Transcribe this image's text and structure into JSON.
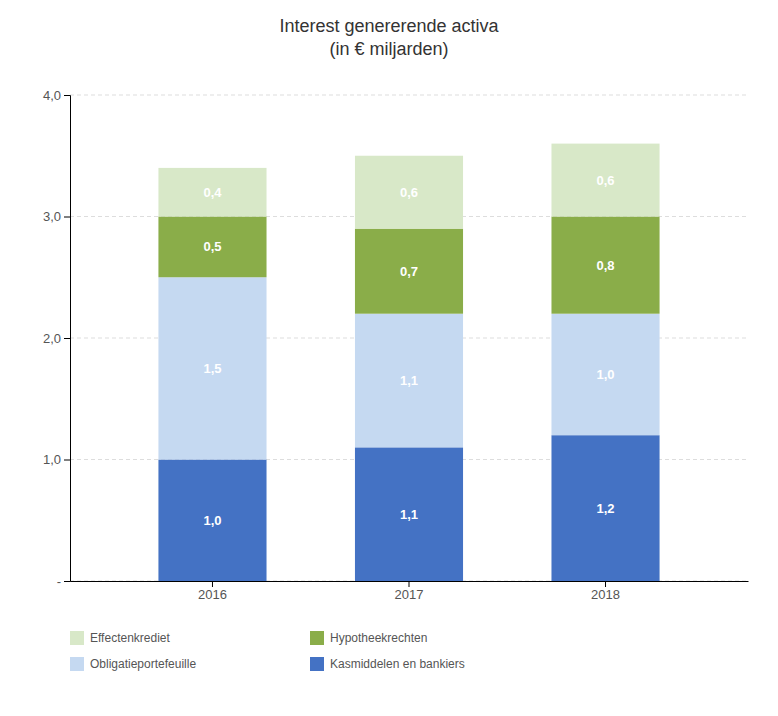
{
  "chart_data": {
    "type": "bar",
    "stacked": true,
    "title": "Interest genererende activa\n(in € miljarden)",
    "categories": [
      "2016",
      "2017",
      "2018"
    ],
    "series": [
      {
        "name": "Kasmiddelen en bankiers",
        "color": "#4472C4",
        "values": [
          1.0,
          1.1,
          1.2
        ],
        "value_labels": [
          "1,0",
          "1,1",
          "1,2"
        ]
      },
      {
        "name": "Obligatieportefeuille",
        "color": "#C5D9F1",
        "values": [
          1.5,
          1.1,
          1.0
        ],
        "value_labels": [
          "1,5",
          "1,1",
          "1,0"
        ]
      },
      {
        "name": "Hypotheekrechten",
        "color": "#8AAD49",
        "values": [
          0.5,
          0.7,
          0.8
        ],
        "value_labels": [
          "0,5",
          "0,7",
          "0,8"
        ]
      },
      {
        "name": "Effectenkrediet",
        "color": "#D8E8C8",
        "values": [
          0.4,
          0.6,
          0.6
        ],
        "value_labels": [
          "0,4",
          "0,6",
          "0,6"
        ]
      }
    ],
    "ylim": [
      0,
      4.0
    ],
    "yticks": [
      {
        "value": 0.0,
        "label": "-"
      },
      {
        "value": 1.0,
        "label": "1,0"
      },
      {
        "value": 2.0,
        "label": "2,0"
      },
      {
        "value": 3.0,
        "label": "3,0"
      },
      {
        "value": 4.0,
        "label": "4,0"
      }
    ],
    "grid": true,
    "data_labels": true,
    "legend": "bottom"
  }
}
